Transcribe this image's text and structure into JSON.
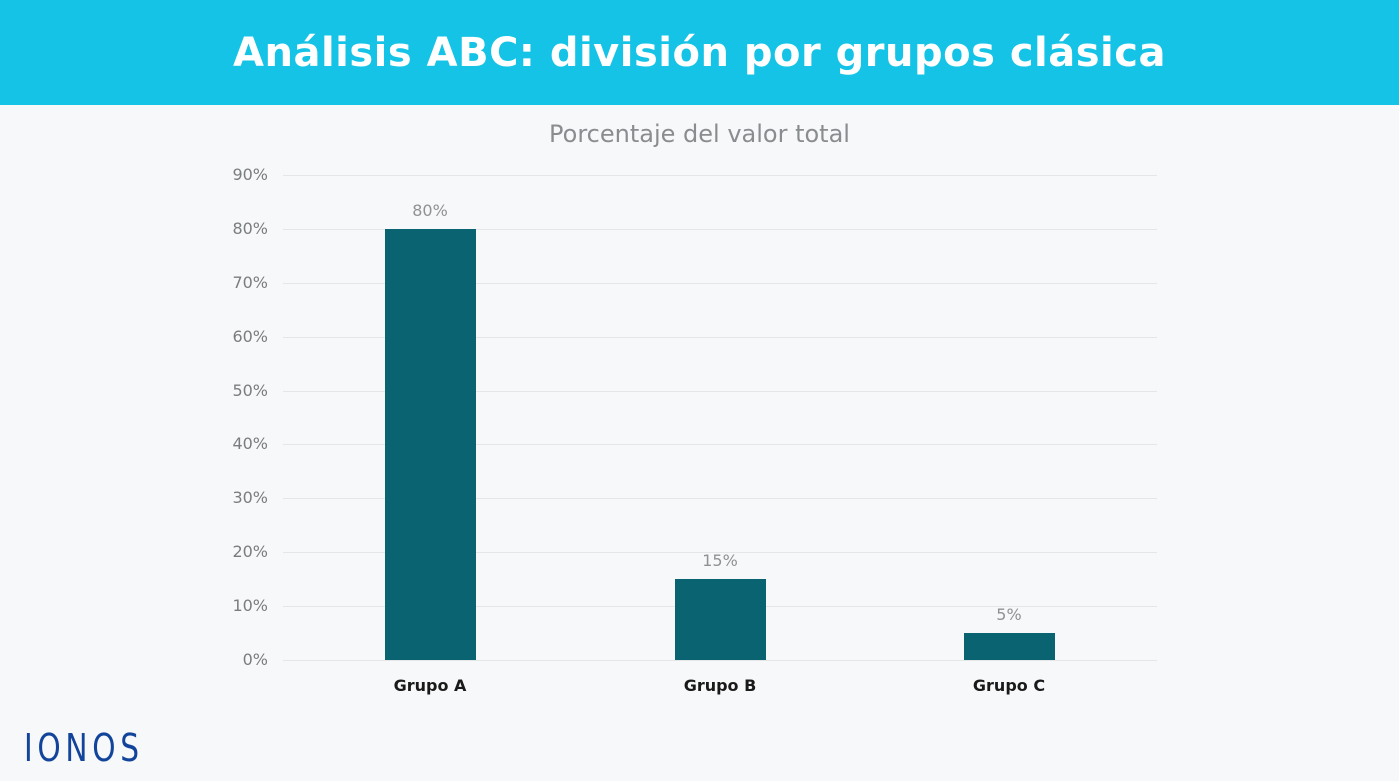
{
  "header": {
    "title": "Análisis ABC: división por grupos clásica"
  },
  "chart_data": {
    "type": "bar",
    "title": "Porcentaje del valor total",
    "categories": [
      "Grupo A",
      "Grupo B",
      "Grupo C"
    ],
    "values": [
      80,
      15,
      5
    ],
    "value_labels": [
      "80%",
      "15%",
      "5%"
    ],
    "xlabel": "",
    "ylabel": "",
    "ylim": [
      0,
      90
    ],
    "yticks": [
      "0%",
      "10%",
      "20%",
      "30%",
      "40%",
      "50%",
      "60%",
      "70%",
      "80%",
      "90%"
    ],
    "grid": true,
    "legend": "none",
    "bar_color": "#0a6370"
  },
  "colors": {
    "header_bg": "#14c3e6",
    "logo": "#12449b",
    "bar": "#0a6370"
  },
  "footer": {
    "logo": "IONOS"
  }
}
